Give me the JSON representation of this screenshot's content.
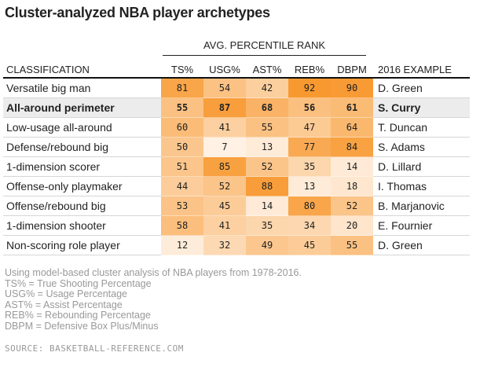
{
  "title": "Cluster-analyzed NBA player archetypes",
  "chart_data": {
    "type": "heatmap",
    "title": "Cluster-analyzed NBA player archetypes",
    "group_header": "AVG. PERCENTILE RANK",
    "columns": [
      "CLASSIFICATION",
      "TS%",
      "USG%",
      "AST%",
      "REB%",
      "DBPM",
      "2016 EXAMPLE"
    ],
    "rows": [
      {
        "classification": "Versatile big man",
        "values": [
          81,
          54,
          42,
          92,
          90
        ],
        "example": "D. Green",
        "highlight": false
      },
      {
        "classification": "All-around perimeter",
        "values": [
          55,
          87,
          68,
          56,
          61
        ],
        "example": "S. Curry",
        "highlight": true
      },
      {
        "classification": "Low-usage all-around",
        "values": [
          60,
          41,
          55,
          47,
          64
        ],
        "example": "T. Duncan",
        "highlight": false
      },
      {
        "classification": "Defense/rebound big",
        "values": [
          50,
          7,
          13,
          77,
          84
        ],
        "example": "S. Adams",
        "highlight": false
      },
      {
        "classification": "1-dimension scorer",
        "values": [
          51,
          85,
          52,
          35,
          14
        ],
        "example": "D. Lillard",
        "highlight": false
      },
      {
        "classification": "Offense-only playmaker",
        "values": [
          44,
          52,
          88,
          13,
          18
        ],
        "example": "I. Thomas",
        "highlight": false
      },
      {
        "classification": "Offense/rebound big",
        "values": [
          53,
          45,
          14,
          80,
          52
        ],
        "example": "B. Marjanovic",
        "highlight": false
      },
      {
        "classification": "1-dimension shooter",
        "values": [
          58,
          41,
          35,
          34,
          20
        ],
        "example": "E. Fournier",
        "highlight": false
      },
      {
        "classification": "Non-scoring role player",
        "values": [
          12,
          32,
          49,
          45,
          55
        ],
        "example": "D. Green",
        "highlight": false
      }
    ],
    "color_scale": {
      "low": "#fff6ee",
      "high": "#f7901e",
      "domain": [
        0,
        100
      ]
    }
  },
  "notes": [
    "Using model-based cluster analysis of NBA players from 1978-2016.",
    "TS% = True Shooting Percentage",
    "USG% = Usage Percentage",
    "AST% = Assist Percentage",
    "REB% = Rebounding Percentage",
    "DBPM = Defensive Box Plus/Minus"
  ],
  "source": "SOURCE: BASKETBALL-REFERENCE.COM"
}
